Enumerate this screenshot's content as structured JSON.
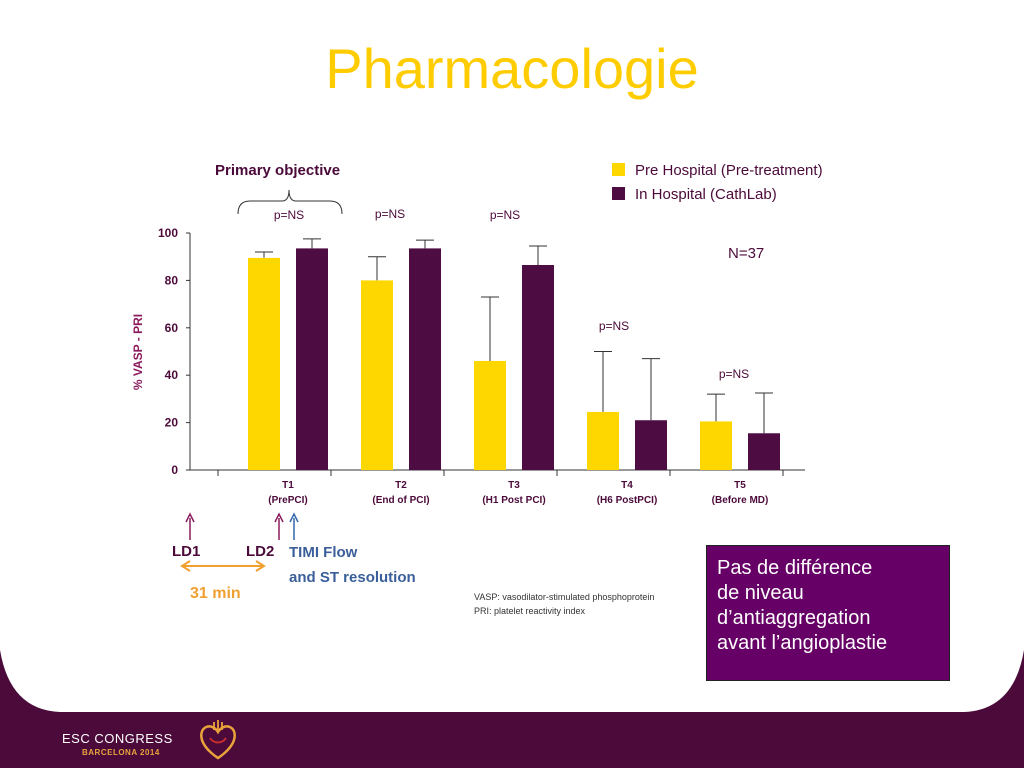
{
  "slide": {
    "title": "Pharmacologie",
    "callout_lines": [
      "Pas de différence",
      "de niveau",
      "d’antiaggregation",
      "avant l’angioplastie"
    ]
  },
  "footer": {
    "congress_name": "ESC CONGRESS",
    "congress_city": "BARCELONA 2014",
    "logo_icon": "esc-congress-heart-logo-icon"
  },
  "chart_data": {
    "type": "bar",
    "ylabel": "% VASP - PRI",
    "ylim": [
      0,
      100
    ],
    "yticks": [
      0,
      20,
      40,
      60,
      80,
      100
    ],
    "categories": [
      "T1",
      "T2",
      "T3",
      "T4",
      "T5"
    ],
    "category_sublabels": [
      "(PrePCI)",
      "(End of PCI)",
      "(H1 Post PCI)",
      "(H6 PostPCI)",
      "(Before MD)"
    ],
    "series": [
      {
        "name": "Pre Hospital (Pre-treatment)",
        "color": "#FFD700",
        "values": [
          89.5,
          80,
          46,
          24.5,
          20.5
        ],
        "error_upper": [
          92,
          90,
          73,
          50,
          32
        ]
      },
      {
        "name": "In Hospital (CathLab)",
        "color": "#4D0D42",
        "values": [
          93.5,
          93.5,
          86.5,
          21,
          15.5
        ],
        "error_upper": [
          97.5,
          97,
          94.5,
          47,
          32.5
        ]
      }
    ],
    "legend": {
      "position": "top-right"
    },
    "annotations": {
      "primary_objective": "Primary objective",
      "p_values": [
        "p=NS",
        "p=NS",
        "p=NS",
        "p=NS",
        "p=NS"
      ],
      "n": "N=37",
      "abbreviations": [
        "VASP: vasodilator-stimulated phosphoprotein",
        "PRI: platelet reactivity index"
      ]
    },
    "timeline": {
      "ld1": "LD1",
      "ld2": "LD2",
      "interval": "31 min",
      "timi_line1": "TIMI Flow",
      "timi_line2": "and ST resolution"
    },
    "colors": {
      "pink_arrow": "#8B1A5C",
      "blue_arrow": "#3366AA",
      "orange": "#F0A030",
      "axis_text": "#4B0A3A"
    }
  }
}
